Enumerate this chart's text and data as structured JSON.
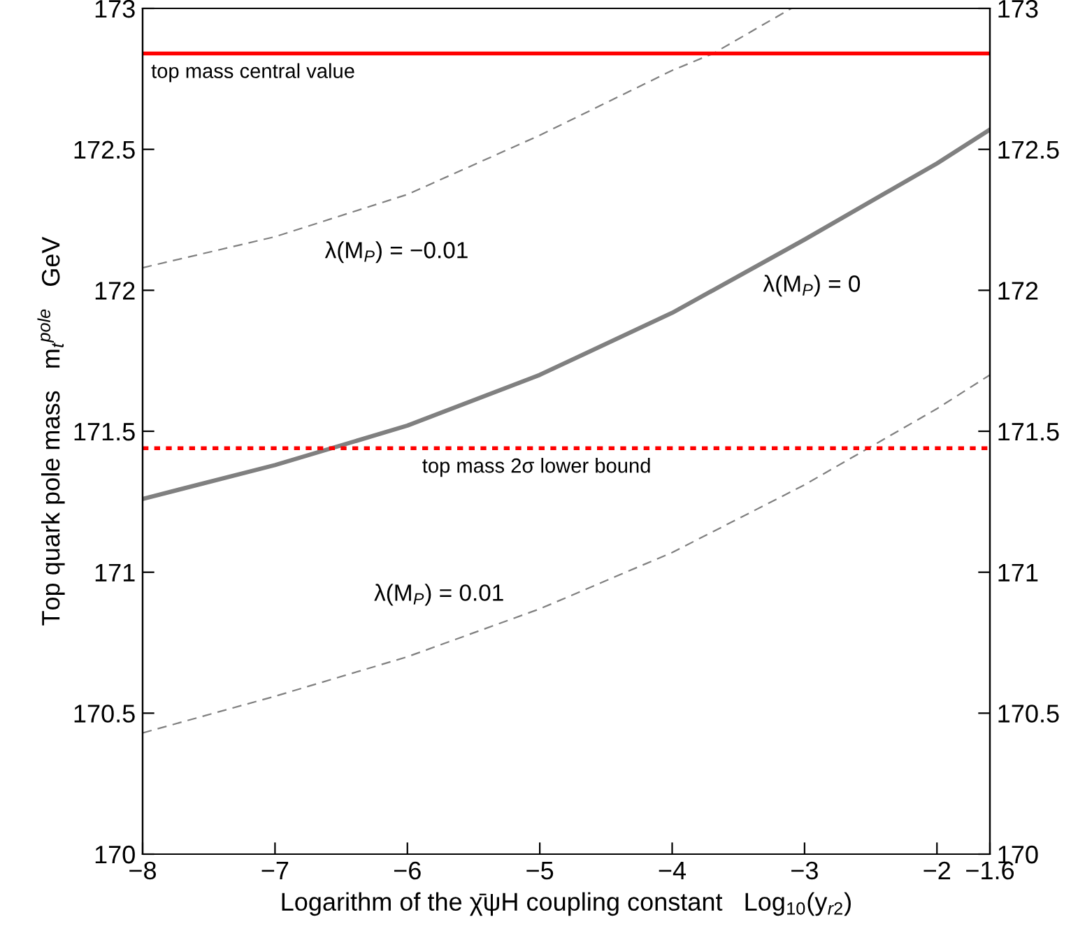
{
  "chart_data": {
    "type": "line",
    "xlabel": "Logarithm of the χ̄ψH coupling constant   Log$_{10}$(y$_{r2}$)",
    "ylabel": "Top quark pole mass   m$_{t}$$^{pole}$   GeV",
    "xlim": [
      -8,
      -1.6
    ],
    "xticks": [
      -8,
      -7,
      -6,
      -5,
      -4,
      -3,
      -2,
      -1.6
    ],
    "ylim": [
      170,
      173
    ],
    "yticks": [
      170,
      170.5,
      171,
      171.5,
      172,
      172.5,
      173
    ],
    "y2lim": [
      170,
      173
    ],
    "y2ticks": [
      170,
      170.5,
      171,
      171.5,
      172,
      172.5,
      173
    ],
    "grid": false,
    "legend": false,
    "marker": "none",
    "series": [
      {
        "name": "λ(M$_{P}$) = 0",
        "color": "#808080",
        "line_style": "solid",
        "x": [
          -8,
          -7,
          -6,
          -5,
          -4,
          -3,
          -2,
          -1.6
        ],
        "values": [
          171.26,
          171.38,
          171.52,
          171.7,
          171.92,
          172.18,
          172.45,
          172.57
        ]
      },
      {
        "name": "λ(M$_{P}$) = −0.01",
        "color": "#808080",
        "line_style": "dashed",
        "x": [
          -8,
          -7,
          -6,
          -5,
          -4,
          -3.69,
          -3.1
        ],
        "values": [
          172.08,
          172.19,
          172.34,
          172.55,
          172.78,
          172.84,
          173
        ]
      },
      {
        "name": "λ(M$_{P}$) = 0.01",
        "color": "#808080",
        "line_style": "dashed",
        "x": [
          -8,
          -7,
          -6,
          -5,
          -4,
          -3,
          -2,
          -1.6
        ],
        "values": [
          170.43,
          170.56,
          170.7,
          170.87,
          171.07,
          171.31,
          171.58,
          171.7
        ]
      }
    ],
    "ref_lines": [
      {
        "axis": "y",
        "value": 172.84,
        "color": "#ff0000",
        "line_style": "solid",
        "label": "top mass central value"
      },
      {
        "axis": "y",
        "value": 171.44,
        "color": "#ff0000",
        "line_style": "dotted",
        "label": "top mass 2σ lower bound"
      }
    ]
  }
}
